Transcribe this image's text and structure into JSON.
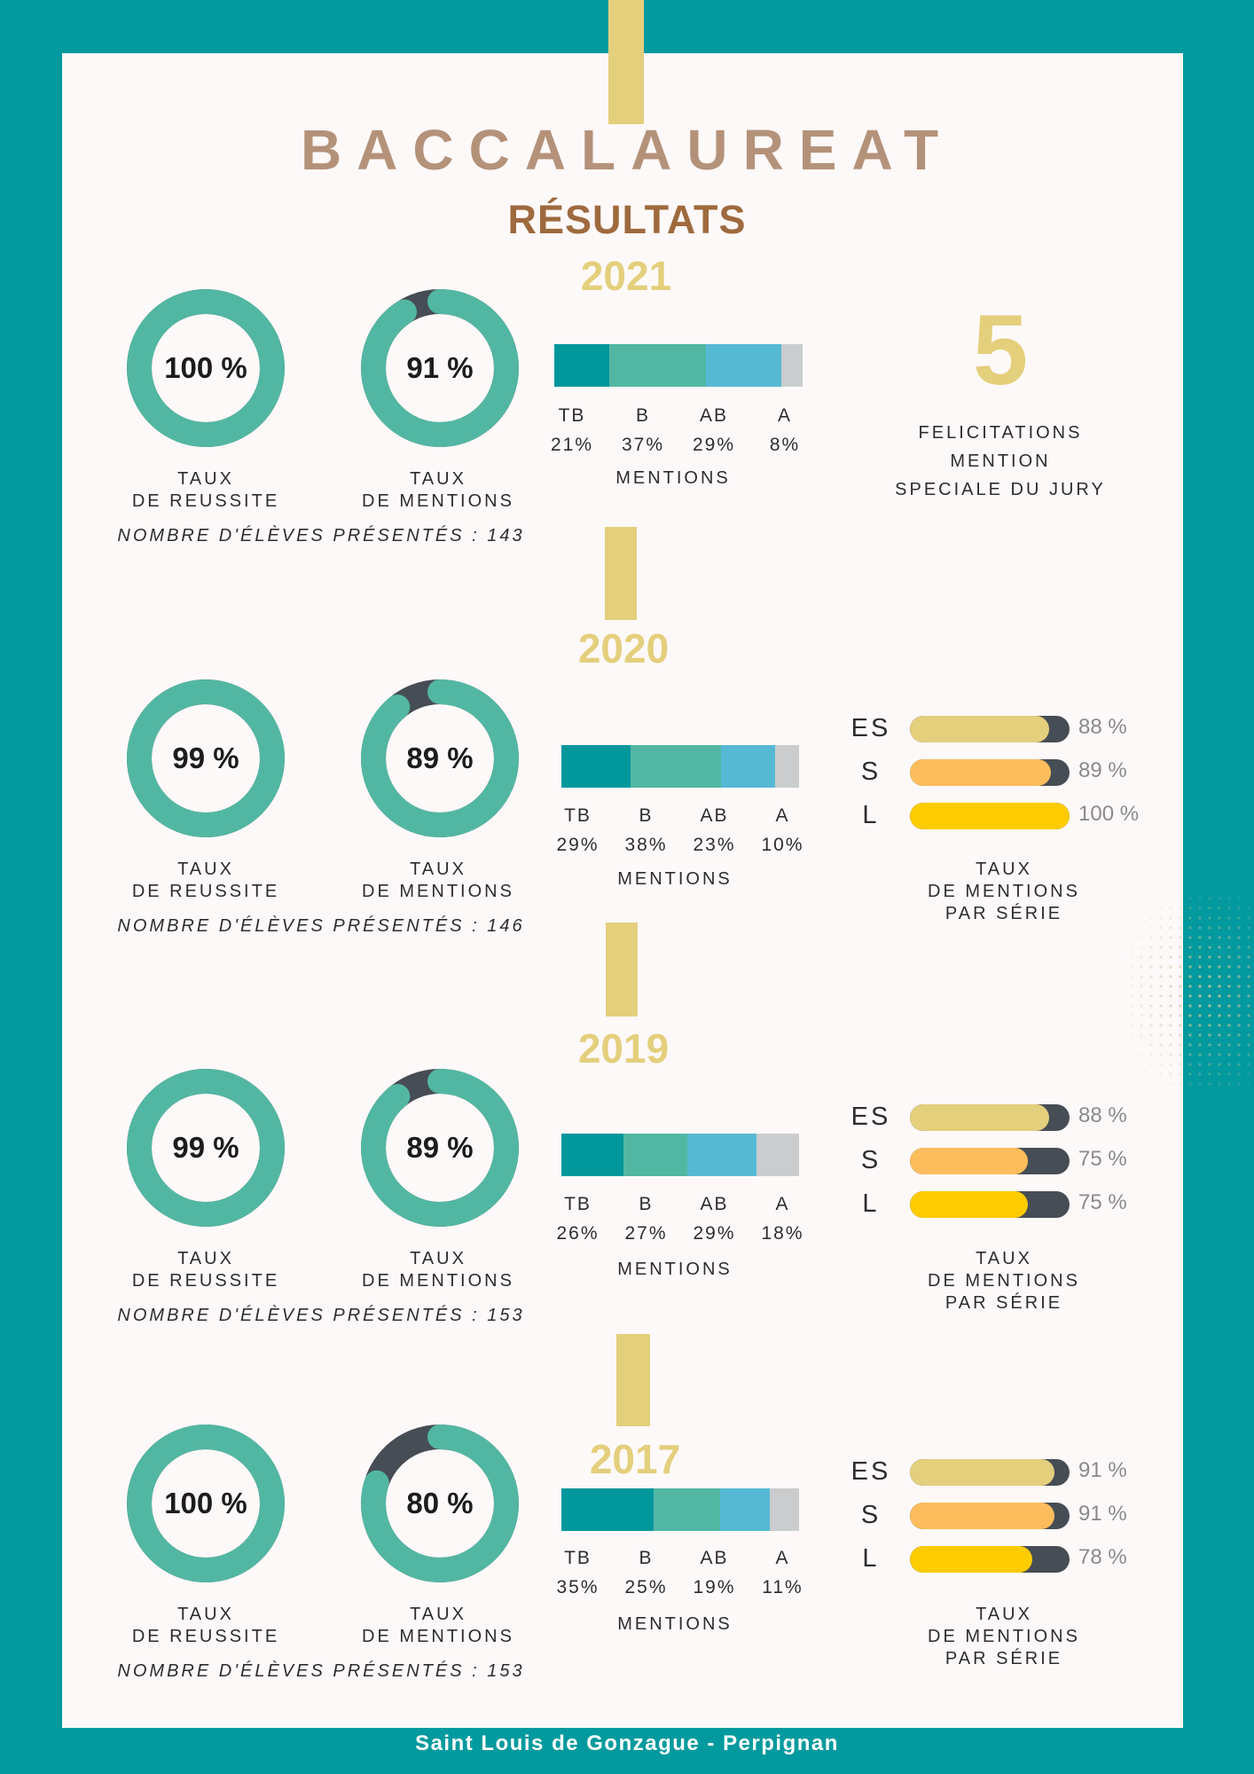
{
  "header": {
    "title": "BACCALAUREAT",
    "subtitle": "RÉSULTATS"
  },
  "colors": {
    "teal_frame": "#029a9e",
    "card_bg": "#fef9f9",
    "gold": "#e4cf7c",
    "donut_fill": "#52b7a2",
    "donut_remainder": "#474d55",
    "mention_TB": "#01979b",
    "mention_B": "#52b7a2",
    "mention_AB": "#56b9d4",
    "mention_A": "#cacccd",
    "serie_ES": "#e4cf7c",
    "serie_S": "#fdbd5c",
    "serie_L": "#fdcc00",
    "serie_track": "#474d55"
  },
  "chart_data": [
    {
      "type": "donut",
      "year": "2021",
      "reussite": {
        "value": 100,
        "label": "100 %",
        "caption_1": "TAUX",
        "caption_2": "DE REUSSITE"
      },
      "mentions_rate": {
        "value": 91,
        "label": "91 %",
        "caption_1": "TAUX",
        "caption_2": "DE MENTIONS"
      },
      "eleves": "NOMBRE D'ÉLÈVES PRÉSENTÉS : 143",
      "mentions": {
        "type": "stacked-bar",
        "title": "MENTIONS",
        "categories": [
          "TB",
          "B",
          "AB",
          "A"
        ],
        "values": [
          21,
          37,
          29,
          8
        ],
        "labels": [
          "21%",
          "37%",
          "29%",
          "8%"
        ]
      },
      "felicitations": {
        "count": "5",
        "line_1": "FELICITATIONS",
        "line_2": "MENTION",
        "line_3": "SPECIALE DU JURY"
      }
    },
    {
      "type": "donut",
      "year": "2020",
      "reussite": {
        "value": 99,
        "label": "99 %",
        "caption_1": "TAUX",
        "caption_2": "DE REUSSITE"
      },
      "mentions_rate": {
        "value": 89,
        "label": "89 %",
        "caption_1": "TAUX",
        "caption_2": "DE MENTIONS"
      },
      "eleves": "NOMBRE D'ÉLÈVES PRÉSENTÉS : 146",
      "mentions": {
        "type": "stacked-bar",
        "title": "MENTIONS",
        "categories": [
          "TB",
          "B",
          "AB",
          "A"
        ],
        "values": [
          29,
          38,
          23,
          10
        ],
        "labels": [
          "29%",
          "38%",
          "23%",
          "10%"
        ]
      },
      "series": {
        "type": "bar",
        "categories": [
          "ES",
          "S",
          "L"
        ],
        "values": [
          88,
          89,
          100
        ],
        "labels": [
          "88 %",
          "89 %",
          "100 %"
        ],
        "caption_1": "TAUX",
        "caption_2": "DE MENTIONS",
        "caption_3": "PAR SÉRIE"
      }
    },
    {
      "type": "donut",
      "year": "2019",
      "reussite": {
        "value": 99,
        "label": "99 %",
        "caption_1": "TAUX",
        "caption_2": "DE REUSSITE"
      },
      "mentions_rate": {
        "value": 89,
        "label": "89 %",
        "caption_1": "TAUX",
        "caption_2": "DE MENTIONS"
      },
      "eleves": "NOMBRE D'ÉLÈVES PRÉSENTÉS : 153",
      "mentions": {
        "type": "stacked-bar",
        "title": "MENTIONS",
        "categories": [
          "TB",
          "B",
          "AB",
          "A"
        ],
        "values": [
          26,
          27,
          29,
          18
        ],
        "labels": [
          "26%",
          "27%",
          "29%",
          "18%"
        ]
      },
      "series": {
        "type": "bar",
        "categories": [
          "ES",
          "S",
          "L"
        ],
        "values": [
          88,
          75,
          75
        ],
        "labels": [
          "88 %",
          "75 %",
          "75 %"
        ],
        "caption_1": "TAUX",
        "caption_2": "DE MENTIONS",
        "caption_3": "PAR SÉRIE"
      }
    },
    {
      "type": "donut",
      "year": "2017",
      "reussite": {
        "value": 100,
        "label": "100 %",
        "caption_1": "TAUX",
        "caption_2": "DE REUSSITE"
      },
      "mentions_rate": {
        "value": 80,
        "label": "80 %",
        "caption_1": "TAUX",
        "caption_2": "DE MENTIONS"
      },
      "eleves": "NOMBRE D'ÉLÈVES PRÉSENTÉS : 153",
      "mentions": {
        "type": "stacked-bar",
        "title": "MENTIONS",
        "categories": [
          "TB",
          "B",
          "AB",
          "A"
        ],
        "values": [
          35,
          25,
          19,
          11
        ],
        "labels": [
          "35%",
          "25%",
          "19%",
          "11%"
        ]
      },
      "series": {
        "type": "bar",
        "categories": [
          "ES",
          "S",
          "L"
        ],
        "values": [
          91,
          91,
          78
        ],
        "labels": [
          "91 %",
          "91 %",
          "78 %"
        ],
        "caption_1": "TAUX",
        "caption_2": "DE MENTIONS",
        "caption_3": "PAR SÉRIE"
      }
    }
  ],
  "footer": {
    "text": "Saint Louis de Gonzague - Perpignan"
  }
}
